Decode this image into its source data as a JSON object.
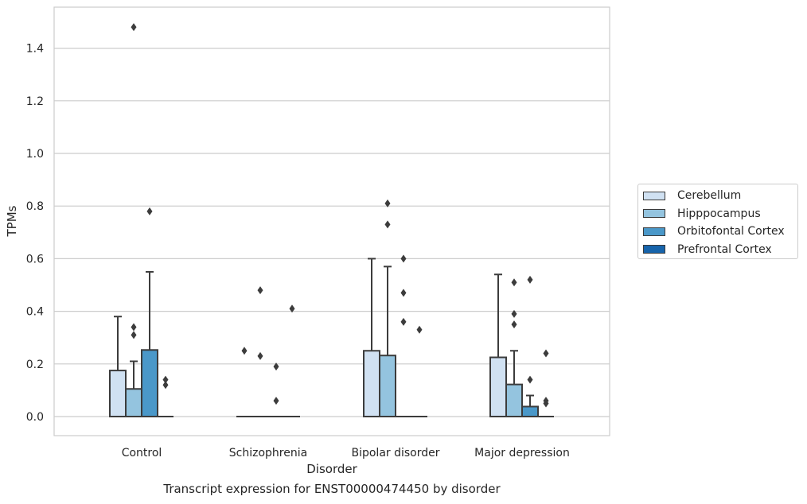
{
  "chart_data": {
    "type": "box",
    "title": "",
    "xlabel": "Disorder",
    "ylabel": "TPMs",
    "ylim": [
      -0.072,
      1.56
    ],
    "yticks": [
      0.0,
      0.2,
      0.4,
      0.6,
      0.8,
      1.0,
      1.2,
      1.4
    ],
    "ytick_labels": [
      "0.0",
      "0.2",
      "0.4",
      "0.6",
      "0.8",
      "1.0",
      "1.2",
      "1.4"
    ],
    "grid": true,
    "legend_position": "center-right outside",
    "categories": [
      "Control",
      "Schizophrenia",
      "Bipolar disorder",
      "Major depression"
    ],
    "series": [
      {
        "name": "Cerebellum",
        "color": "#d0e1f2",
        "boxes": [
          {
            "q1": 0,
            "median": 0,
            "q3": 0.175,
            "lo": 0,
            "hi": 0.38,
            "outliers": []
          },
          {
            "q1": 0,
            "median": 0,
            "q3": 0,
            "lo": 0,
            "hi": 0,
            "outliers": [
              0.25
            ]
          },
          {
            "q1": 0,
            "median": 0,
            "q3": 0.25,
            "lo": 0,
            "hi": 0.6,
            "outliers": []
          },
          {
            "q1": 0,
            "median": 0,
            "q3": 0.225,
            "lo": 0,
            "hi": 0.54,
            "outliers": []
          }
        ]
      },
      {
        "name": "Hipppocampus",
        "color": "#94c4df",
        "boxes": [
          {
            "q1": 0,
            "median": 0,
            "q3": 0.105,
            "lo": 0,
            "hi": 0.21,
            "outliers": [
              1.48,
              0.34,
              0.31
            ]
          },
          {
            "q1": 0,
            "median": 0,
            "q3": 0,
            "lo": 0,
            "hi": 0,
            "outliers": [
              0.48,
              0.23
            ]
          },
          {
            "q1": 0,
            "median": 0,
            "q3": 0.232,
            "lo": 0,
            "hi": 0.57,
            "outliers": [
              0.81,
              0.73
            ]
          },
          {
            "q1": 0,
            "median": 0,
            "q3": 0.122,
            "lo": 0,
            "hi": 0.25,
            "outliers": [
              0.51,
              0.39,
              0.35
            ]
          }
        ]
      },
      {
        "name": "Orbitofontal Cortex",
        "color": "#4a98c9",
        "boxes": [
          {
            "q1": 0,
            "median": 0,
            "q3": 0.253,
            "lo": 0,
            "hi": 0.55,
            "outliers": [
              0.78
            ]
          },
          {
            "q1": 0,
            "median": 0,
            "q3": 0,
            "lo": 0,
            "hi": 0,
            "outliers": [
              0.19,
              0.06
            ]
          },
          {
            "q1": 0,
            "median": 0,
            "q3": 0,
            "lo": 0,
            "hi": 0,
            "outliers": [
              0.6,
              0.47,
              0.36
            ]
          },
          {
            "q1": 0,
            "median": 0,
            "q3": 0.038,
            "lo": 0,
            "hi": 0.08,
            "outliers": [
              0.52,
              0.14
            ]
          }
        ]
      },
      {
        "name": "Prefrontal Cortex",
        "color": "#1764ab",
        "boxes": [
          {
            "q1": 0,
            "median": 0,
            "q3": 0,
            "lo": 0,
            "hi": 0,
            "outliers": [
              0.14,
              0.12
            ]
          },
          {
            "q1": 0,
            "median": 0,
            "q3": 0,
            "lo": 0,
            "hi": 0,
            "outliers": [
              0.41
            ]
          },
          {
            "q1": 0,
            "median": 0,
            "q3": 0,
            "lo": 0,
            "hi": 0,
            "outliers": [
              0.33
            ]
          },
          {
            "q1": 0,
            "median": 0,
            "q3": 0,
            "lo": 0,
            "hi": 0,
            "outliers": [
              0.24,
              0.06,
              0.05
            ]
          }
        ]
      }
    ]
  },
  "caption": "Transcript expression for ENST00000474450 by disorder"
}
